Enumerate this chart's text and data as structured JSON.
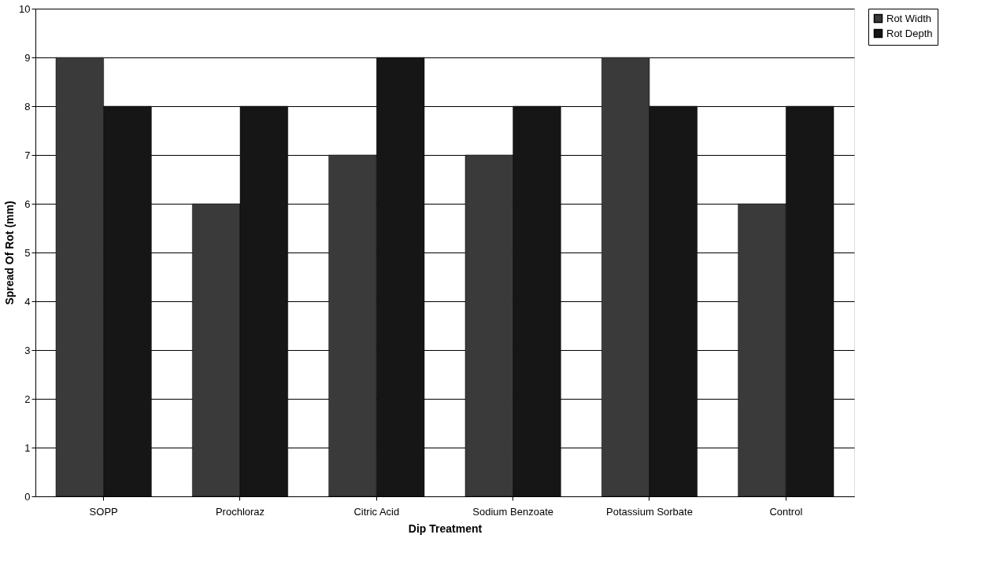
{
  "chart_data": {
    "type": "bar",
    "xlabel": "Dip Treatment",
    "ylabel": "Spread Of Rot (mm)",
    "categories": [
      "SOPP",
      "Prochloraz",
      "Citric Acid",
      "Sodium Benzoate",
      "Potassium Sorbate",
      "Control"
    ],
    "series": [
      {
        "name": "Rot Width",
        "color": "#3a3a3a",
        "values": [
          9,
          6,
          7,
          7,
          9,
          6
        ]
      },
      {
        "name": "Rot Depth",
        "color": "#161616",
        "values": [
          8,
          8,
          9,
          8,
          8,
          8
        ]
      }
    ],
    "ylim": [
      0,
      10
    ],
    "yticks": [
      0,
      1,
      2,
      3,
      4,
      5,
      6,
      7,
      8,
      9,
      10
    ],
    "grid": "y",
    "legend": "right"
  }
}
